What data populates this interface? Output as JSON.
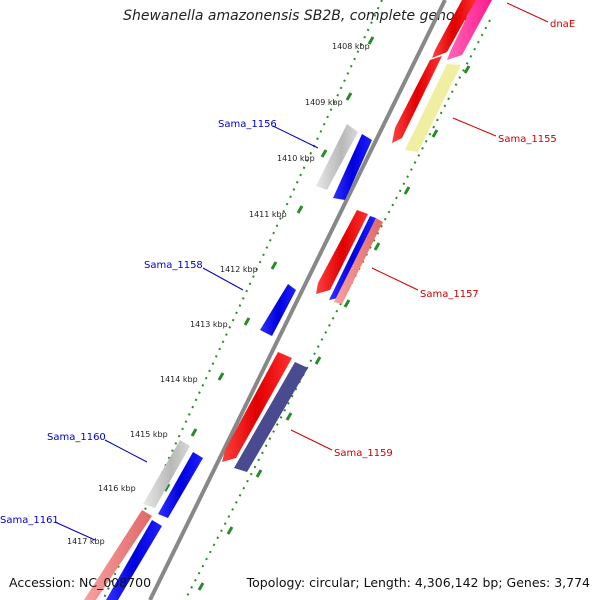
{
  "title": "Shewanella amazonensis SB2B, complete genome",
  "accession": "Accession: NC_008700",
  "topology": "Topology: circular; Length: 4,306,142 bp; Genes: 3,774",
  "colors": {
    "forward": "#ff0000",
    "reverse": "#0000ff",
    "backbone": "#888888",
    "tick": "#2a8a2a",
    "forward_label": "#cc0000",
    "reverse_label": "#0000cc",
    "pink": "#ff3399",
    "pale_yellow": "#f0eea0",
    "grey_gene": "#c4c4c4",
    "purple_gene": "#4a4a90",
    "light_red": "#f08080"
  },
  "ticks": [
    "1408 kbp",
    "1409 kbp",
    "1410 kbp",
    "1411 kbp",
    "1412 kbp",
    "1413 kbp",
    "1414 kbp",
    "1415 kbp",
    "1416 kbp",
    "1417 kbp"
  ],
  "genes": {
    "left": [
      "Sama_1156",
      "Sama_1158",
      "Sama_1160",
      "Sama_1161"
    ],
    "right": [
      "dnaE",
      "Sama_1155",
      "Sama_1157",
      "Sama_1159"
    ]
  }
}
